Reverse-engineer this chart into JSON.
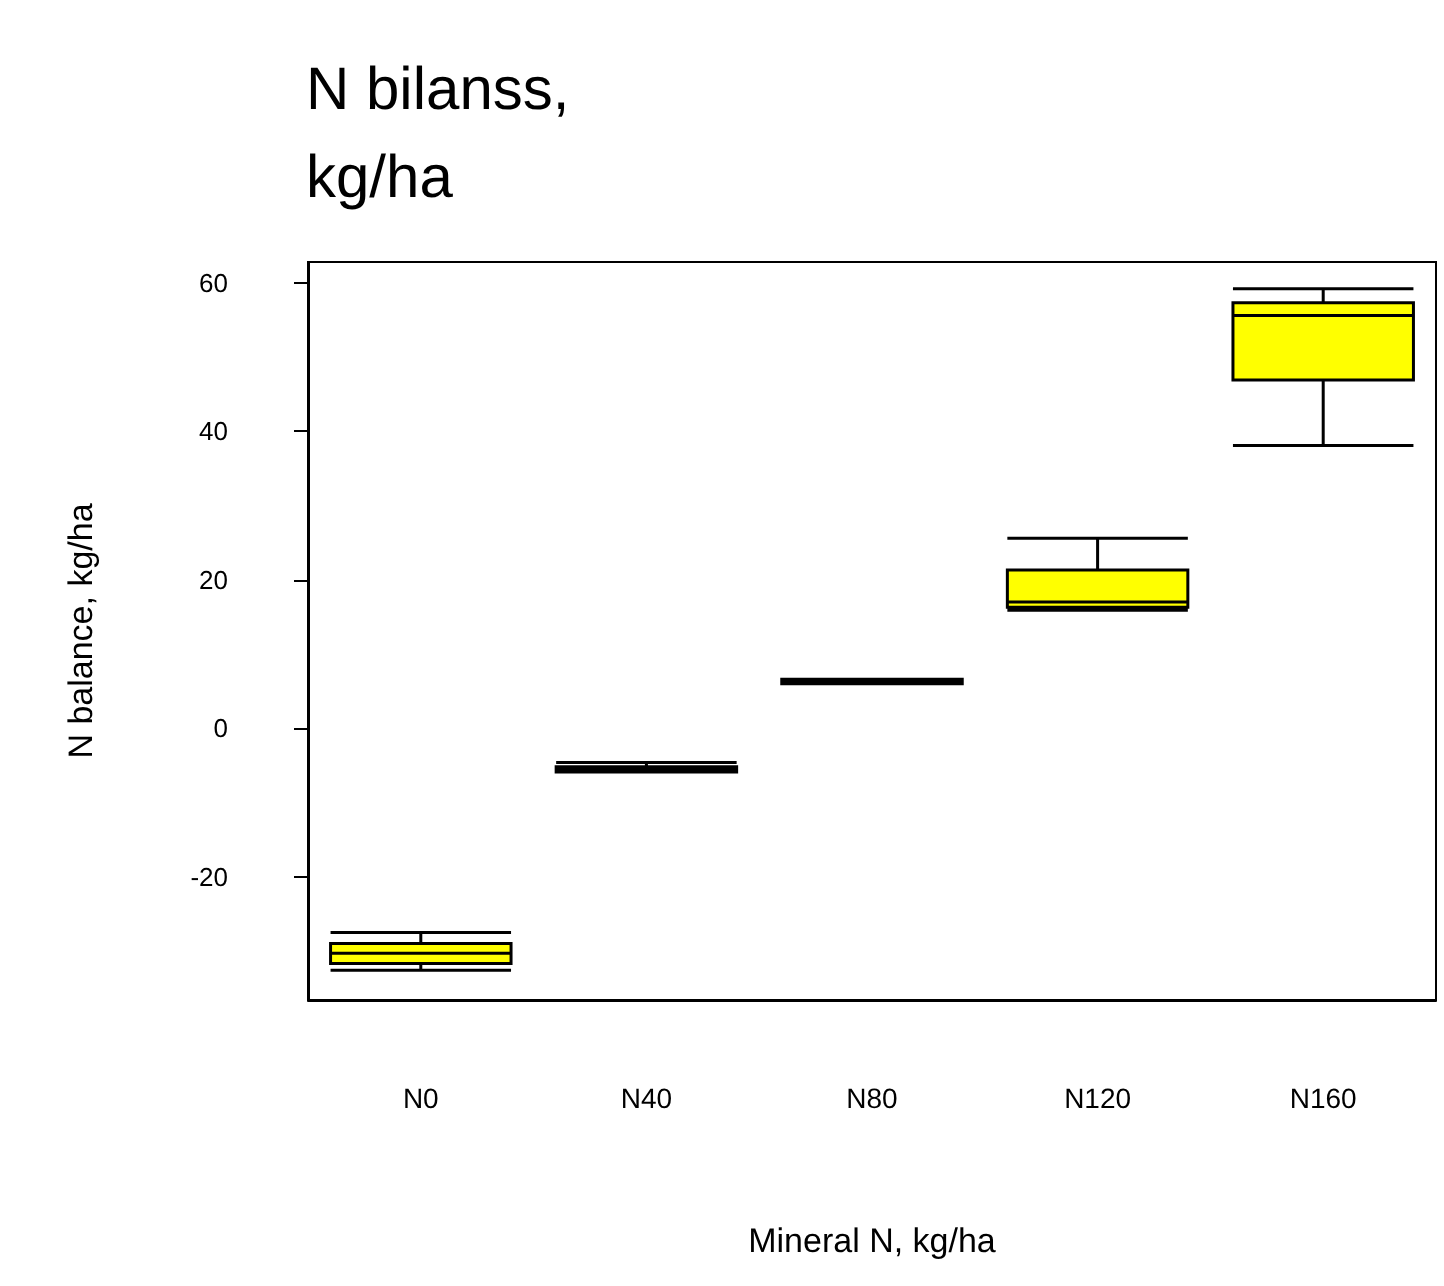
{
  "chart_data": {
    "type": "box",
    "title": "N bilanss,\nkg/ha",
    "xlabel": "Mineral N, kg/ha",
    "ylabel": "N balance, kg/ha",
    "categories": [
      "N0",
      "N40",
      "N80",
      "N120",
      "N160"
    ],
    "color": "#ffff00",
    "boxes": [
      {
        "low": -32.6,
        "q1": -31.7,
        "median": -30.3,
        "q3": -29.0,
        "high": -27.5
      },
      {
        "low": -5.9,
        "q1": -5.9,
        "median": -5.6,
        "q3": -5.2,
        "high": -4.6
      },
      {
        "low": 6.0,
        "q1": 6.0,
        "median": 6.3,
        "q3": 6.6,
        "high": 6.6
      },
      {
        "low": 15.9,
        "q1": 16.3,
        "median": 17.0,
        "q3": 21.3,
        "high": 25.6
      },
      {
        "low": 38.1,
        "q1": 46.9,
        "median": 55.6,
        "q3": 57.3,
        "high": 59.2
      }
    ],
    "ylim": [
      -36.6,
      62.8
    ],
    "yticks": [
      -20,
      0,
      20,
      40,
      60
    ],
    "grid": false
  }
}
